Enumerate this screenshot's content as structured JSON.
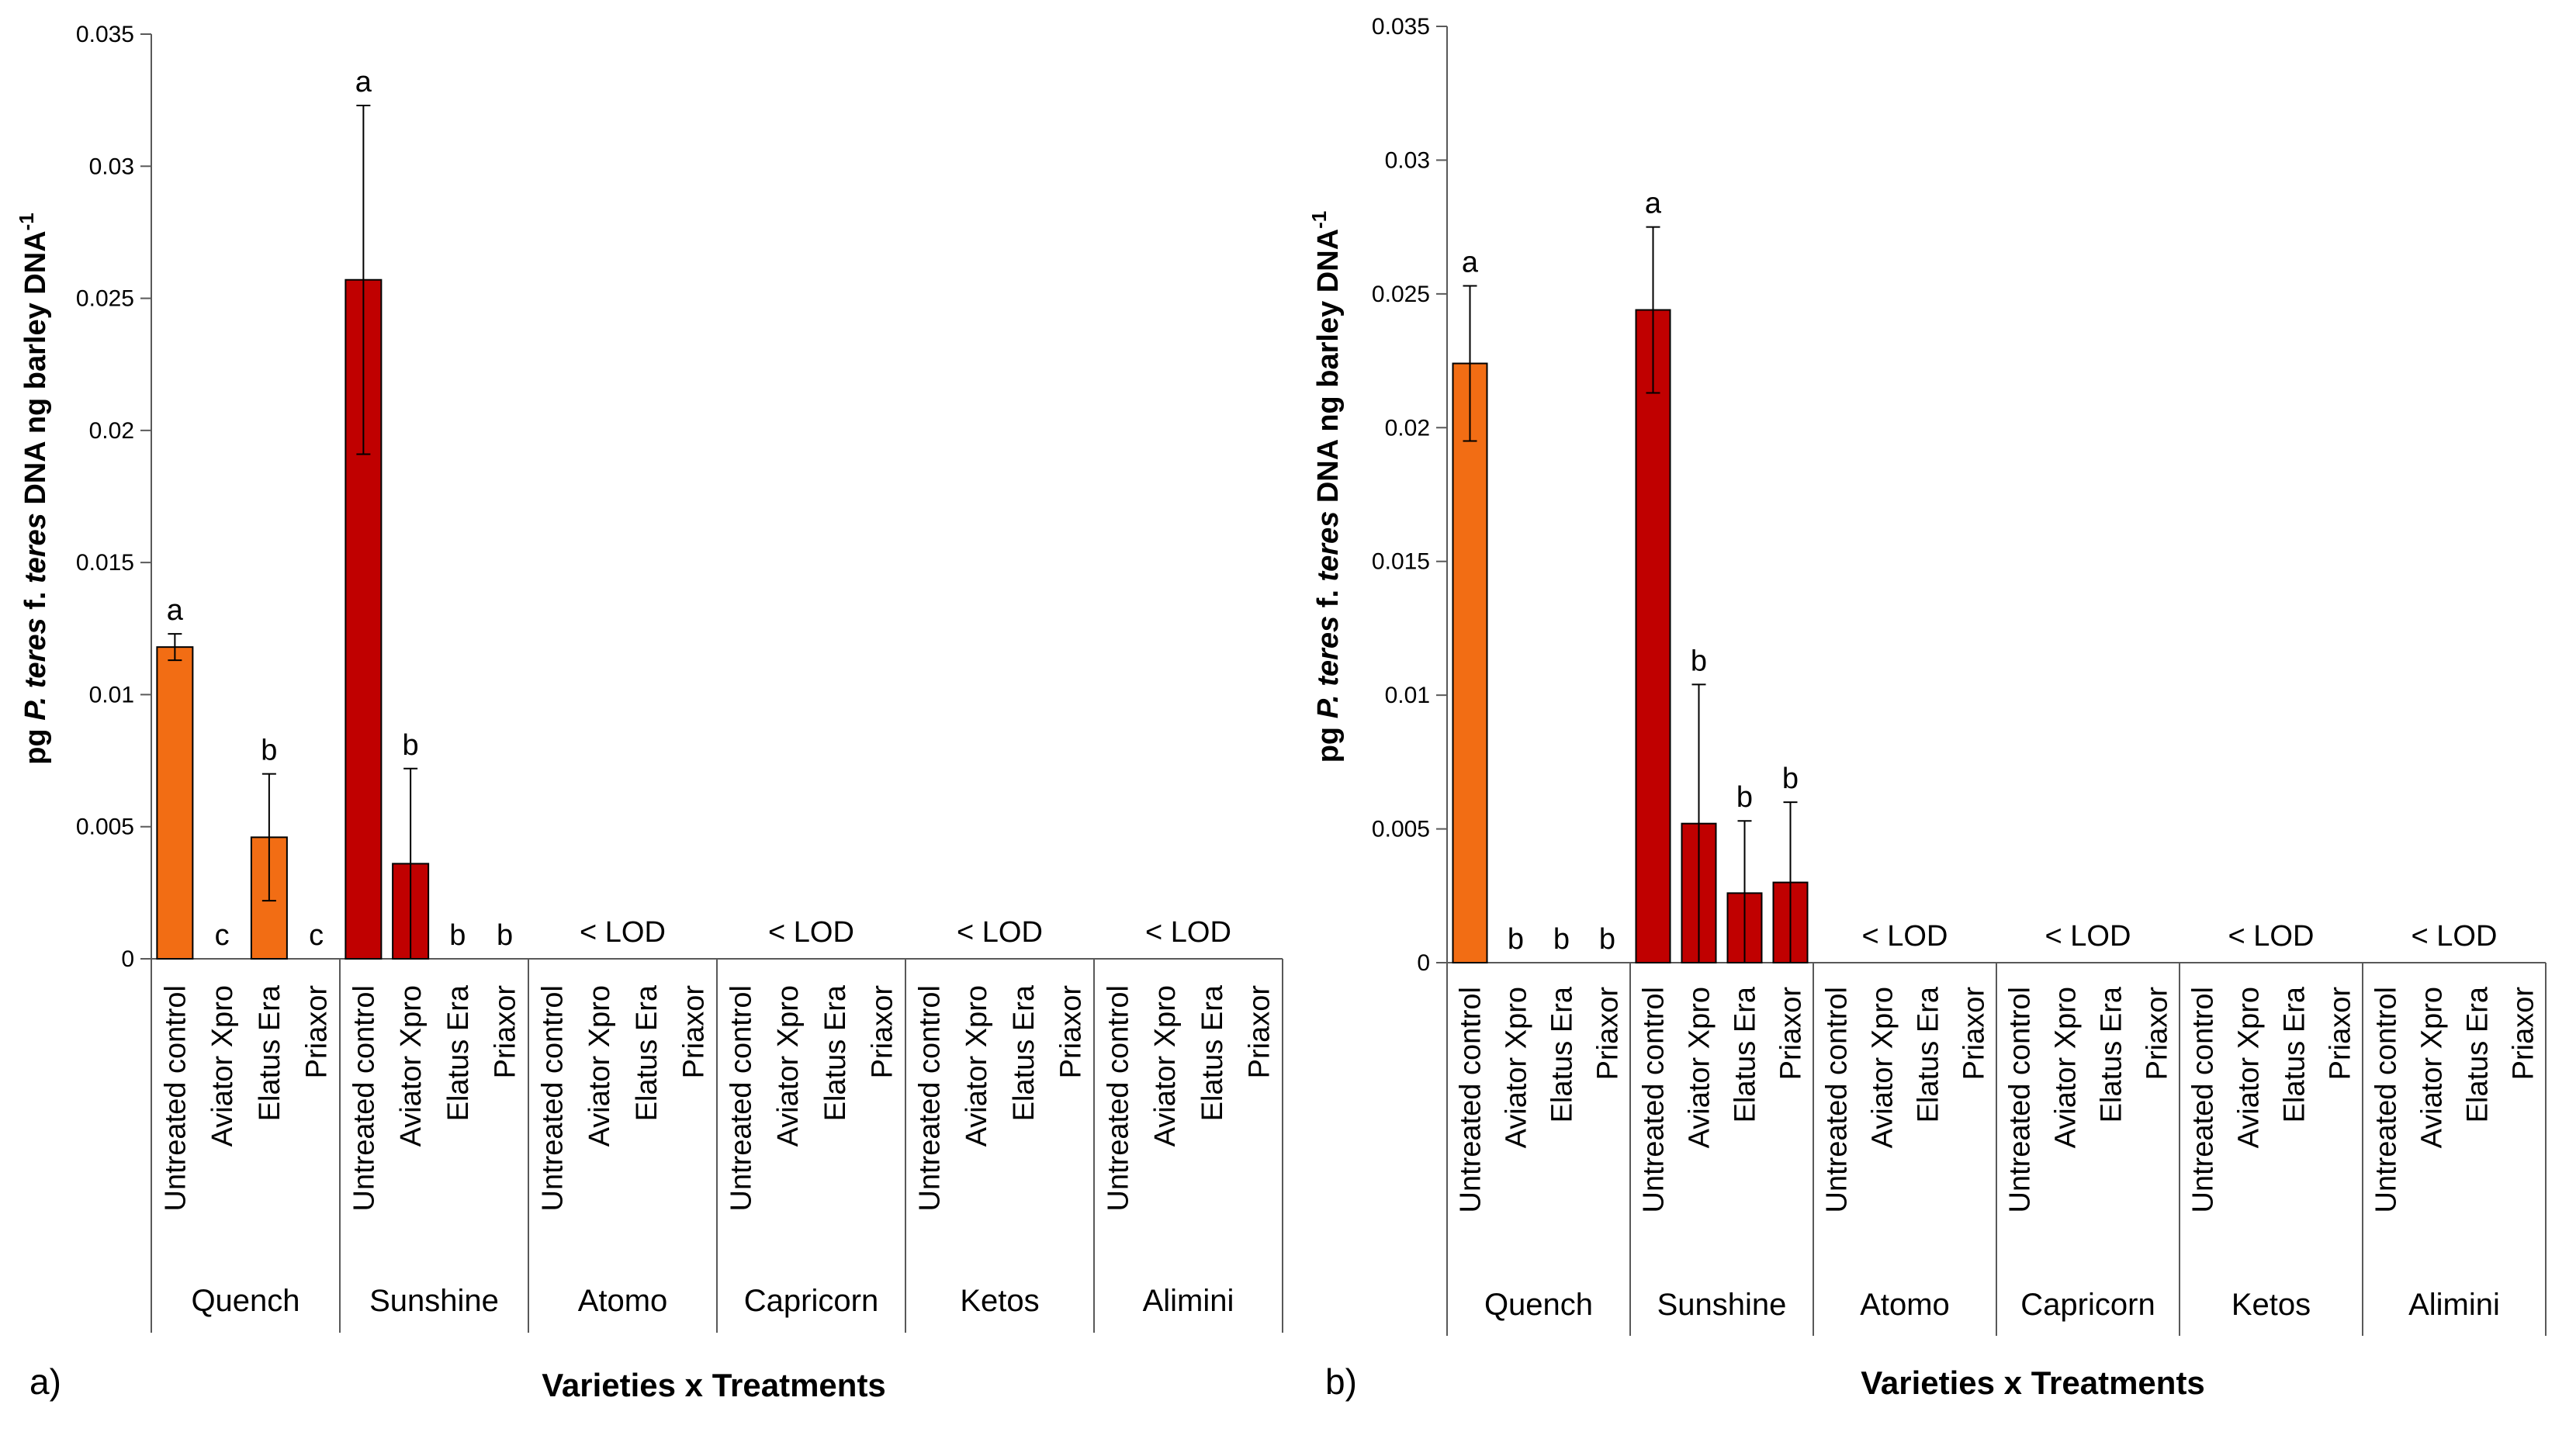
{
  "chart_data": [
    {
      "panel_label": "a)",
      "type": "bar",
      "xlabel": "Varieties x Treatments",
      "ylabel": {
        "prefix": "pg ",
        "species": "P. teres",
        "forma": " f. ",
        "epithet": "teres",
        "suffix": " DNA ng barley DNA",
        "superscript": "-1"
      },
      "ylim": [
        0,
        0.035
      ],
      "yticks": [
        "0",
        "0.005",
        "0.01",
        "0.015",
        "0.02",
        "0.025",
        "0.03",
        "0.035"
      ],
      "groups": [
        {
          "name": "Quench",
          "color": "#F26D14",
          "lod_label": null,
          "bars": [
            {
              "treatment": "Untreated control",
              "value": 0.0118,
              "error": 0.0005,
              "letter": "a"
            },
            {
              "treatment": "Aviator Xpro",
              "value": 0,
              "error": 0,
              "letter": "c"
            },
            {
              "treatment": "Elatus Era",
              "value": 0.0046,
              "error": 0.0024,
              "letter": "b"
            },
            {
              "treatment": "Priaxor",
              "value": 0,
              "error": 0,
              "letter": "c"
            }
          ]
        },
        {
          "name": "Sunshine",
          "color": "#C00000",
          "lod_label": null,
          "bars": [
            {
              "treatment": "Untreated control",
              "value": 0.0257,
              "error": 0.0066,
              "letter": "a"
            },
            {
              "treatment": "Aviator Xpro",
              "value": 0.0036,
              "error": 0.0036,
              "letter": "b"
            },
            {
              "treatment": "Elatus Era",
              "value": 0,
              "error": 0,
              "letter": "b"
            },
            {
              "treatment": "Priaxor",
              "value": 0,
              "error": 0,
              "letter": "b"
            }
          ]
        },
        {
          "name": "Atomo",
          "color": "#C00000",
          "lod_label": "< LOD",
          "bars": [
            {
              "treatment": "Untreated control",
              "value": 0,
              "error": 0,
              "letter": ""
            },
            {
              "treatment": "Aviator Xpro",
              "value": 0,
              "error": 0,
              "letter": ""
            },
            {
              "treatment": "Elatus Era",
              "value": 0,
              "error": 0,
              "letter": ""
            },
            {
              "treatment": "Priaxor",
              "value": 0,
              "error": 0,
              "letter": ""
            }
          ]
        },
        {
          "name": "Capricorn",
          "color": "#C00000",
          "lod_label": "< LOD",
          "bars": [
            {
              "treatment": "Untreated control",
              "value": 0,
              "error": 0,
              "letter": ""
            },
            {
              "treatment": "Aviator Xpro",
              "value": 0,
              "error": 0,
              "letter": ""
            },
            {
              "treatment": "Elatus Era",
              "value": 0,
              "error": 0,
              "letter": ""
            },
            {
              "treatment": "Priaxor",
              "value": 0,
              "error": 0,
              "letter": ""
            }
          ]
        },
        {
          "name": "Ketos",
          "color": "#C00000",
          "lod_label": "< LOD",
          "bars": [
            {
              "treatment": "Untreated control",
              "value": 0,
              "error": 0,
              "letter": ""
            },
            {
              "treatment": "Aviator Xpro",
              "value": 0,
              "error": 0,
              "letter": ""
            },
            {
              "treatment": "Elatus Era",
              "value": 0,
              "error": 0,
              "letter": ""
            },
            {
              "treatment": "Priaxor",
              "value": 0,
              "error": 0,
              "letter": ""
            }
          ]
        },
        {
          "name": "Alimini",
          "color": "#C00000",
          "lod_label": "< LOD",
          "bars": [
            {
              "treatment": "Untreated control",
              "value": 0,
              "error": 0,
              "letter": ""
            },
            {
              "treatment": "Aviator Xpro",
              "value": 0,
              "error": 0,
              "letter": ""
            },
            {
              "treatment": "Elatus Era",
              "value": 0,
              "error": 0,
              "letter": ""
            },
            {
              "treatment": "Priaxor",
              "value": 0,
              "error": 0,
              "letter": ""
            }
          ]
        }
      ]
    },
    {
      "panel_label": "b)",
      "type": "bar",
      "xlabel": "Varieties x Treatments",
      "ylabel": {
        "prefix": "pg ",
        "species": "P. teres",
        "forma": " f. ",
        "epithet": "teres",
        "suffix": " DNA ng barley DNA",
        "superscript": "-1"
      },
      "ylim": [
        0,
        0.035
      ],
      "yticks": [
        "0",
        "0.005",
        "0.01",
        "0.015",
        "0.02",
        "0.025",
        "0.03",
        "0.035"
      ],
      "groups": [
        {
          "name": "Quench",
          "color": "#F26D14",
          "lod_label": null,
          "bars": [
            {
              "treatment": "Untreated control",
              "value": 0.0224,
              "error": 0.0029,
              "letter": "a"
            },
            {
              "treatment": "Aviator Xpro",
              "value": 0,
              "error": 0,
              "letter": "b"
            },
            {
              "treatment": "Elatus Era",
              "value": 0,
              "error": 0,
              "letter": "b"
            },
            {
              "treatment": "Priaxor",
              "value": 0,
              "error": 0,
              "letter": "b"
            }
          ]
        },
        {
          "name": "Sunshine",
          "color": "#C00000",
          "lod_label": null,
          "bars": [
            {
              "treatment": "Untreated control",
              "value": 0.0244,
              "error": 0.0031,
              "letter": "a"
            },
            {
              "treatment": "Aviator Xpro",
              "value": 0.0052,
              "error": 0.0052,
              "letter": "b"
            },
            {
              "treatment": "Elatus Era",
              "value": 0.0026,
              "error": 0.0027,
              "letter": "b"
            },
            {
              "treatment": "Priaxor",
              "value": 0.003,
              "error": 0.003,
              "letter": "b"
            }
          ]
        },
        {
          "name": "Atomo",
          "color": "#C00000",
          "lod_label": "< LOD",
          "bars": [
            {
              "treatment": "Untreated control",
              "value": 0,
              "error": 0,
              "letter": ""
            },
            {
              "treatment": "Aviator Xpro",
              "value": 0,
              "error": 0,
              "letter": ""
            },
            {
              "treatment": "Elatus Era",
              "value": 0,
              "error": 0,
              "letter": ""
            },
            {
              "treatment": "Priaxor",
              "value": 0,
              "error": 0,
              "letter": ""
            }
          ]
        },
        {
          "name": "Capricorn",
          "color": "#C00000",
          "lod_label": "< LOD",
          "bars": [
            {
              "treatment": "Untreated control",
              "value": 0,
              "error": 0,
              "letter": ""
            },
            {
              "treatment": "Aviator Xpro",
              "value": 0,
              "error": 0,
              "letter": ""
            },
            {
              "treatment": "Elatus Era",
              "value": 0,
              "error": 0,
              "letter": ""
            },
            {
              "treatment": "Priaxor",
              "value": 0,
              "error": 0,
              "letter": ""
            }
          ]
        },
        {
          "name": "Ketos",
          "color": "#C00000",
          "lod_label": "< LOD",
          "bars": [
            {
              "treatment": "Untreated control",
              "value": 0,
              "error": 0,
              "letter": ""
            },
            {
              "treatment": "Aviator Xpro",
              "value": 0,
              "error": 0,
              "letter": ""
            },
            {
              "treatment": "Elatus Era",
              "value": 0,
              "error": 0,
              "letter": ""
            },
            {
              "treatment": "Priaxor",
              "value": 0,
              "error": 0,
              "letter": ""
            }
          ]
        },
        {
          "name": "Alimini",
          "color": "#C00000",
          "lod_label": "< LOD",
          "bars": [
            {
              "treatment": "Untreated control",
              "value": 0,
              "error": 0,
              "letter": ""
            },
            {
              "treatment": "Aviator Xpro",
              "value": 0,
              "error": 0,
              "letter": ""
            },
            {
              "treatment": "Elatus Era",
              "value": 0,
              "error": 0,
              "letter": ""
            },
            {
              "treatment": "Priaxor",
              "value": 0,
              "error": 0,
              "letter": ""
            }
          ]
        }
      ]
    }
  ]
}
